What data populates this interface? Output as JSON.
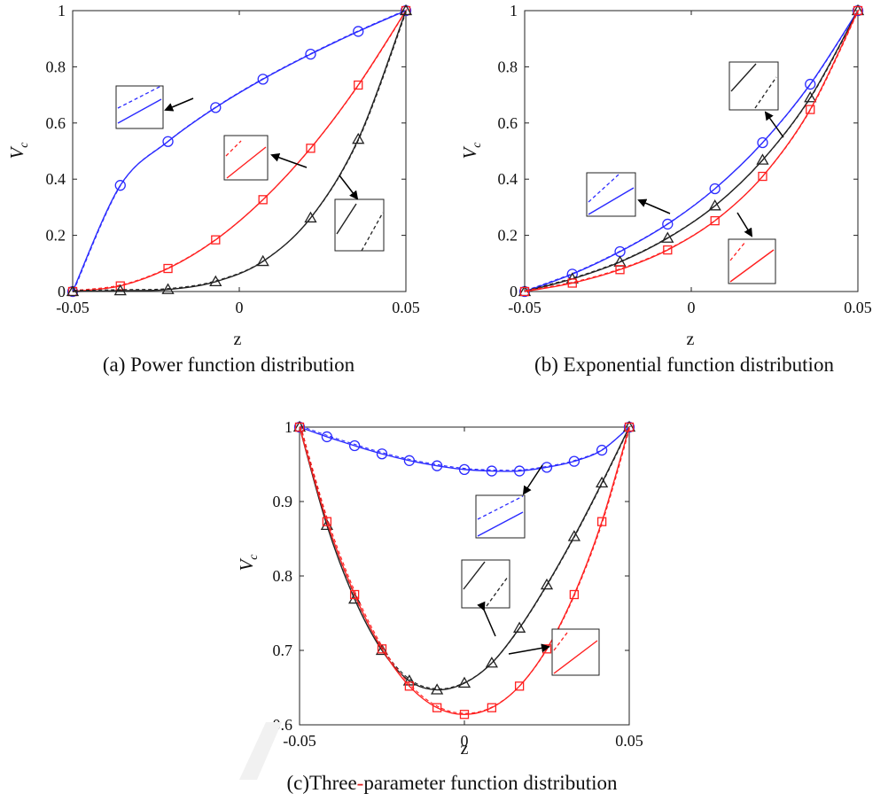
{
  "chart_data": [
    {
      "type": "line",
      "caption": "(a) Power function distribution",
      "xlabel": "z",
      "ylabel": "V",
      "ylabel_sub": "c",
      "xlim": [
        -0.05,
        0.05
      ],
      "ylim": [
        0,
        1
      ],
      "xticks": [
        -0.05,
        0,
        0.05
      ],
      "xtick_labels": [
        "-0.05",
        "0",
        "0.05"
      ],
      "yticks": [
        0,
        0.2,
        0.4,
        0.6,
        0.8,
        1
      ],
      "ytick_labels": [
        "0",
        "0.2",
        "0.4",
        "0.6",
        "0.8",
        "1"
      ],
      "grid": false,
      "series": [
        {
          "color": "#2b2bff",
          "marker": "circle",
          "x": [
            -0.05,
            -0.0357,
            -0.0214,
            -0.0071,
            0.0071,
            0.0214,
            0.0357,
            0.05
          ],
          "y": [
            0,
            0.378,
            0.534,
            0.655,
            0.756,
            0.845,
            0.926,
            1
          ]
        },
        {
          "color": "#ff2020",
          "marker": "square",
          "x": [
            -0.05,
            -0.0357,
            -0.0214,
            -0.0071,
            0.0071,
            0.0214,
            0.0357,
            0.05
          ],
          "y": [
            0,
            0.02,
            0.082,
            0.184,
            0.327,
            0.51,
            0.735,
            1
          ]
        },
        {
          "color": "#222222",
          "marker": "triangle",
          "x": [
            -0.05,
            -0.0357,
            -0.0214,
            -0.0071,
            0.0071,
            0.0214,
            0.0357,
            0.05
          ],
          "y": [
            0,
            0.003,
            0.007,
            0.035,
            0.107,
            0.262,
            0.542,
            1
          ]
        }
      ]
    },
    {
      "type": "line",
      "caption": "(b) Exponential function distribution",
      "xlabel": "z",
      "ylabel": "V",
      "ylabel_sub": "c",
      "xlim": [
        -0.05,
        0.05
      ],
      "ylim": [
        0,
        1
      ],
      "xticks": [
        -0.05,
        0,
        0.05
      ],
      "xtick_labels": [
        "-0.05",
        "0",
        "0.05"
      ],
      "yticks": [
        0,
        0.2,
        0.4,
        0.6,
        0.8,
        1
      ],
      "ytick_labels": [
        "0",
        "0.2",
        "0.4",
        "0.6",
        "0.8",
        "1"
      ],
      "grid": false,
      "series": [
        {
          "color": "#2b2bff",
          "marker": "circle",
          "x": [
            -0.05,
            -0.0357,
            -0.0214,
            -0.0071,
            0.0071,
            0.0214,
            0.0357,
            0.05
          ],
          "y": [
            0,
            0.062,
            0.142,
            0.24,
            0.366,
            0.53,
            0.738,
            1
          ]
        },
        {
          "color": "#222222",
          "marker": "triangle",
          "x": [
            -0.05,
            -0.0357,
            -0.0214,
            -0.0071,
            0.0071,
            0.0214,
            0.0357,
            0.05
          ],
          "y": [
            0,
            0.045,
            0.105,
            0.19,
            0.305,
            0.468,
            0.69,
            1
          ]
        },
        {
          "color": "#ff2020",
          "marker": "square",
          "x": [
            -0.05,
            -0.0357,
            -0.0214,
            -0.0071,
            0.0071,
            0.0214,
            0.0357,
            0.05
          ],
          "y": [
            0,
            0.03,
            0.078,
            0.148,
            0.252,
            0.41,
            0.648,
            1
          ]
        }
      ]
    },
    {
      "type": "line",
      "caption_parts": [
        "(c)Three",
        "-",
        "parameter function distribution"
      ],
      "xlabel": "z",
      "ylabel": "V",
      "ylabel_sub": "c",
      "xlim": [
        -0.05,
        0.05
      ],
      "ylim": [
        0.6,
        1
      ],
      "xticks": [
        -0.05,
        0,
        0.05
      ],
      "xtick_labels": [
        "-0.05",
        "0",
        "0.05"
      ],
      "yticks": [
        0.6,
        0.7,
        0.8,
        0.9,
        1
      ],
      "ytick_labels": [
        "0.6",
        "0.7",
        "0.8",
        "0.9",
        "1"
      ],
      "grid": false,
      "series": [
        {
          "color": "#2b2bff",
          "marker": "circle",
          "x": [
            -0.05,
            -0.0417,
            -0.0333,
            -0.025,
            -0.0167,
            -0.0083,
            0,
            0.0083,
            0.0167,
            0.025,
            0.0333,
            0.0417,
            0.05
          ],
          "y": [
            1,
            0.987,
            0.975,
            0.964,
            0.955,
            0.948,
            0.943,
            0.941,
            0.941,
            0.946,
            0.954,
            0.969,
            1
          ]
        },
        {
          "color": "#222222",
          "marker": "triangle",
          "x": [
            -0.05,
            -0.0417,
            -0.0333,
            -0.025,
            -0.0167,
            -0.0083,
            0,
            0.0083,
            0.0167,
            0.025,
            0.0333,
            0.0417,
            0.05
          ],
          "y": [
            1,
            0.868,
            0.769,
            0.7,
            0.659,
            0.647,
            0.656,
            0.683,
            0.73,
            0.788,
            0.853,
            0.925,
            1
          ]
        },
        {
          "color": "#ff2020",
          "marker": "square",
          "x": [
            -0.05,
            -0.0417,
            -0.0333,
            -0.025,
            -0.0167,
            -0.0083,
            0,
            0.0083,
            0.0167,
            0.025,
            0.0333,
            0.0417,
            0.05
          ],
          "y": [
            1,
            0.873,
            0.775,
            0.702,
            0.652,
            0.623,
            0.614,
            0.623,
            0.652,
            0.702,
            0.775,
            0.873,
            1
          ]
        }
      ]
    }
  ]
}
